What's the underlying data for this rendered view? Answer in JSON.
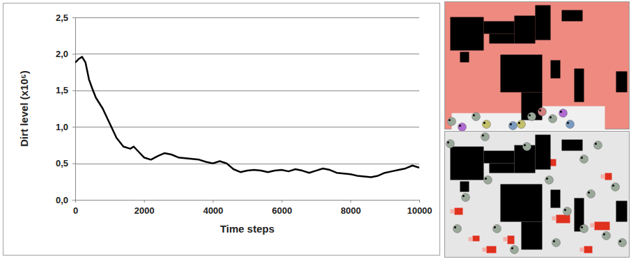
{
  "chart_data": {
    "type": "line",
    "x_label": "Time steps",
    "y_label": "Dirt level (x10⁵)",
    "x": [
      0,
      100,
      200,
      300,
      400,
      500,
      600,
      800,
      1000,
      1200,
      1400,
      1600,
      1700,
      1800,
      2000,
      2200,
      2400,
      2600,
      2800,
      3000,
      3200,
      3400,
      3600,
      3800,
      4000,
      4200,
      4400,
      4600,
      4800,
      5000,
      5200,
      5400,
      5600,
      5800,
      6000,
      6200,
      6400,
      6600,
      6800,
      7000,
      7200,
      7400,
      7600,
      7800,
      8000,
      8200,
      8400,
      8600,
      8800,
      9000,
      9200,
      9400,
      9600,
      9800,
      10000
    ],
    "values": [
      1.88,
      1.93,
      1.96,
      1.88,
      1.65,
      1.52,
      1.4,
      1.25,
      1.05,
      0.85,
      0.73,
      0.7,
      0.73,
      0.68,
      0.58,
      0.55,
      0.6,
      0.64,
      0.62,
      0.58,
      0.57,
      0.56,
      0.55,
      0.52,
      0.5,
      0.53,
      0.5,
      0.42,
      0.38,
      0.4,
      0.41,
      0.4,
      0.38,
      0.4,
      0.41,
      0.39,
      0.42,
      0.4,
      0.37,
      0.4,
      0.43,
      0.41,
      0.37,
      0.36,
      0.35,
      0.33,
      0.32,
      0.31,
      0.33,
      0.37,
      0.39,
      0.41,
      0.43,
      0.47,
      0.44
    ],
    "color": "#000000",
    "xlim": [
      0,
      10000
    ],
    "xticks": [
      0,
      2000,
      4000,
      6000,
      8000,
      10000
    ],
    "ylim": [
      0,
      2.5
    ],
    "yticks": [
      {
        "value": 0,
        "label": "0,0"
      },
      {
        "value": 0.5,
        "label": "0,5"
      },
      {
        "value": 1,
        "label": "1,0"
      },
      {
        "value": 1.5,
        "label": "1,5"
      },
      {
        "value": 2,
        "label": "2,0"
      },
      {
        "value": 2.5,
        "label": "2,5"
      }
    ],
    "grid": true
  }
}
